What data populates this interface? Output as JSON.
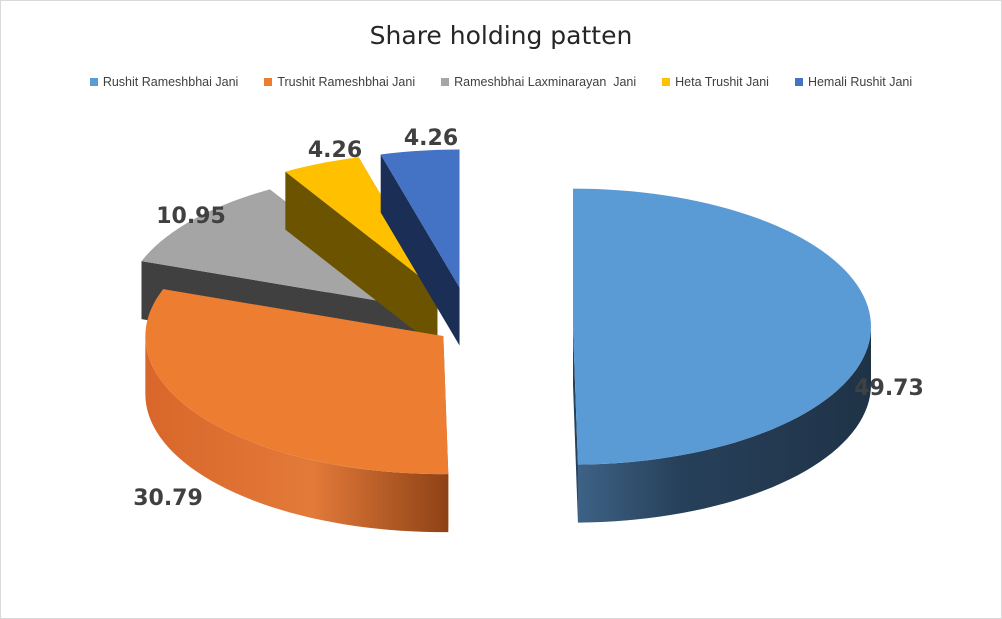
{
  "chart_data": {
    "type": "pie",
    "title": "Share holding patten",
    "categories": [
      "Rushit Rameshbhai Jani",
      "Trushit Rameshbhai Jani",
      "Rameshbhai Laxminarayan  Jani",
      "Heta Trushit Jani",
      "Hemali Rushit Jani"
    ],
    "values": [
      49.73,
      30.79,
      10.95,
      4.26,
      4.26
    ],
    "data_labels": [
      "49.73",
      "30.79",
      "10.95",
      "4.26",
      "4.26"
    ],
    "legend_position": "top",
    "style": "3d-exploded",
    "colors": [
      "#5b9bd5",
      "#ed7d31",
      "#a5a5a5",
      "#ffc000",
      "#4472c4"
    ],
    "side_colors": [
      "#27405a",
      "#b4561e",
      "#404040",
      "#6b5300",
      "#1b2e55"
    ]
  }
}
